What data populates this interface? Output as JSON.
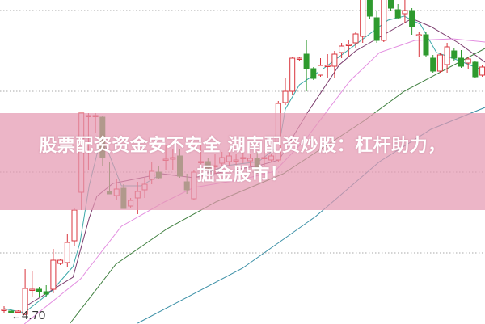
{
  "banner": {
    "line1": "股票配资资金安不安全 湖南配资炒股：杠杆助力，",
    "line2": "掘金股市！",
    "color": "#e498b2"
  },
  "chart_data": {
    "type": "candlestick",
    "title": "",
    "xlabel": "",
    "ylabel": "",
    "ylim": [
      4.61,
      8.62
    ],
    "grid": true,
    "grid_style": "dotted horizontal",
    "low_price_label": "4.70",
    "up_color": "#d9343c",
    "down_color": "#2e9a2e",
    "candles_ohlc": [
      [
        4.79,
        4.83,
        4.74,
        4.79
      ],
      [
        4.77,
        4.8,
        4.74,
        4.76
      ],
      [
        4.76,
        4.78,
        4.74,
        4.77
      ],
      [
        4.73,
        5.29,
        4.72,
        5.05
      ],
      [
        5.04,
        5.27,
        4.94,
        5.04
      ],
      [
        5.04,
        5.07,
        4.94,
        5.01
      ],
      [
        5.01,
        5.09,
        4.95,
        4.98
      ],
      [
        5.04,
        5.54,
        4.99,
        5.4
      ],
      [
        5.36,
        5.42,
        5.34,
        5.4
      ],
      [
        5.37,
        5.72,
        5.32,
        5.62
      ],
      [
        5.64,
        6.04,
        5.57,
        6.02
      ],
      [
        6.24,
        7.22,
        6.02,
        7.22
      ],
      [
        7.19,
        7.22,
        6.52,
        7.19
      ],
      [
        7.19,
        7.22,
        6.97,
        7.19
      ],
      [
        7.17,
        7.19,
        6.57,
        6.67
      ],
      [
        6.25,
        6.62,
        6.22,
        6.22
      ],
      [
        6.2,
        6.4,
        6.14,
        6.28
      ],
      [
        6.29,
        6.34,
        6.04,
        6.04
      ],
      [
        6.07,
        6.17,
        6.04,
        6.14
      ],
      [
        6.17,
        6.37,
        5.97,
        6.25
      ],
      [
        6.27,
        6.42,
        6.17,
        6.34
      ],
      [
        6.4,
        6.62,
        6.34,
        6.5
      ],
      [
        6.49,
        6.57,
        6.4,
        6.42
      ],
      [
        6.65,
        6.82,
        6.52,
        6.65
      ],
      [
        6.65,
        6.77,
        6.52,
        6.67
      ],
      [
        6.69,
        6.77,
        6.42,
        6.44
      ],
      [
        6.37,
        6.47,
        6.22,
        6.27
      ],
      [
        6.16,
        6.52,
        6.14,
        6.49
      ],
      [
        6.62,
        6.82,
        6.47,
        6.62
      ],
      [
        6.62,
        6.67,
        6.5,
        6.54
      ],
      [
        6.57,
        6.72,
        6.47,
        6.57
      ],
      [
        6.6,
        6.74,
        6.57,
        6.67
      ],
      [
        6.62,
        6.77,
        6.57,
        6.69
      ],
      [
        6.64,
        6.72,
        6.57,
        6.64
      ],
      [
        6.67,
        6.74,
        6.6,
        6.67
      ],
      [
        6.63,
        6.72,
        6.57,
        6.66
      ],
      [
        6.66,
        6.74,
        6.47,
        6.5
      ],
      [
        6.67,
        6.74,
        6.57,
        6.67
      ],
      [
        6.64,
        6.72,
        6.62,
        6.69
      ],
      [
        6.64,
        7.37,
        6.62,
        7.34
      ],
      [
        7.35,
        7.65,
        7.32,
        7.49
      ],
      [
        7.49,
        7.92,
        7.44,
        7.9
      ],
      [
        7.9,
        7.92,
        7.87,
        7.9
      ],
      [
        7.95,
        8.13,
        7.49,
        7.77
      ],
      [
        7.77,
        7.79,
        7.63,
        7.65
      ],
      [
        7.69,
        7.9,
        7.67,
        7.81
      ],
      [
        7.81,
        7.95,
        7.65,
        7.81
      ],
      [
        7.8,
        7.99,
        7.65,
        7.95
      ],
      [
        7.97,
        8.09,
        7.9,
        8.05
      ],
      [
        8.07,
        8.12,
        7.92,
        8.07
      ],
      [
        8.09,
        8.22,
        8.02,
        8.2
      ],
      [
        8.17,
        8.72,
        8.09,
        8.67
      ],
      [
        8.67,
        8.72,
        8.39,
        8.42
      ],
      [
        8.4,
        8.49,
        8.09,
        8.12
      ],
      [
        8.12,
        8.72,
        8.1,
        8.67
      ],
      [
        8.67,
        8.72,
        8.49,
        8.52
      ],
      [
        8.5,
        8.57,
        8.38,
        8.4
      ],
      [
        8.45,
        8.67,
        8.34,
        8.49
      ],
      [
        8.49,
        8.52,
        8.19,
        8.29
      ],
      [
        8.19,
        8.22,
        7.92,
        8.19
      ],
      [
        8.19,
        8.22,
        7.92,
        7.94
      ],
      [
        7.9,
        7.94,
        7.72,
        7.74
      ],
      [
        7.74,
        7.97,
        7.72,
        7.94
      ],
      [
        7.82,
        8.09,
        7.72,
        8.04
      ],
      [
        7.99,
        8.02,
        7.87,
        7.9
      ],
      [
        7.9,
        8.0,
        7.78,
        7.8
      ],
      [
        7.84,
        7.92,
        7.77,
        7.89
      ],
      [
        7.85,
        7.87,
        7.65,
        7.67
      ],
      [
        7.69,
        7.82,
        7.67,
        7.79
      ]
    ],
    "moving_averages": [
      {
        "color": "#3aa8a8",
        "points": [
          [
            0,
            4.8
          ],
          [
            2.9,
            4.75
          ],
          [
            6.8,
            5.02
          ],
          [
            9.8,
            5.32
          ],
          [
            10.8,
            5.62
          ],
          [
            12.1,
            6.32
          ],
          [
            13.8,
            6.92
          ],
          [
            14.9,
            6.72
          ],
          [
            16.7,
            6.32
          ],
          [
            19.5,
            6.32
          ],
          [
            22.4,
            6.47
          ],
          [
            27,
            6.42
          ],
          [
            31.6,
            6.57
          ],
          [
            36.2,
            6.62
          ],
          [
            39.1,
            6.82
          ],
          [
            40,
            7.27
          ],
          [
            42,
            7.57
          ],
          [
            45.4,
            7.77
          ],
          [
            50,
            8.07
          ],
          [
            52.3,
            8.22
          ],
          [
            54.6,
            8.37
          ],
          [
            56.9,
            8.42
          ],
          [
            59.2,
            8.32
          ],
          [
            61.5,
            7.97
          ],
          [
            63.8,
            7.9
          ],
          [
            66.1,
            7.82
          ],
          [
            68.4,
            7.74
          ]
        ]
      },
      {
        "color": "#7a3a6c",
        "points": [
          [
            2.9,
            4.82
          ],
          [
            9.8,
            5.19
          ],
          [
            12.1,
            5.92
          ],
          [
            13.2,
            6.19
          ],
          [
            15.5,
            6.35
          ],
          [
            22.4,
            6.47
          ],
          [
            27,
            6.42
          ],
          [
            31.6,
            6.5
          ],
          [
            36.2,
            6.57
          ],
          [
            39.1,
            6.64
          ],
          [
            43.1,
            7.22
          ],
          [
            47.7,
            7.82
          ],
          [
            50,
            7.99
          ],
          [
            54.6,
            8.22
          ],
          [
            58,
            8.39
          ],
          [
            60.7,
            8.29
          ],
          [
            64.6,
            8.09
          ],
          [
            68.4,
            7.85
          ]
        ]
      },
      {
        "color": "#e38ee0",
        "points": [
          [
            2.9,
            4.61
          ],
          [
            10.9,
            5.17
          ],
          [
            14,
            5.52
          ],
          [
            16.7,
            5.82
          ],
          [
            22.8,
            6.12
          ],
          [
            27,
            6.3
          ],
          [
            33.9,
            6.4
          ],
          [
            38.5,
            6.5
          ],
          [
            43.1,
            6.92
          ],
          [
            49.2,
            7.62
          ],
          [
            53.4,
            7.97
          ],
          [
            58.4,
            8.12
          ],
          [
            63.8,
            8.14
          ],
          [
            68.4,
            8.1
          ]
        ]
      },
      {
        "color": "#3f7f3f",
        "points": [
          [
            9.4,
            4.62
          ],
          [
            15.9,
            5.35
          ],
          [
            23.2,
            5.79
          ],
          [
            30.1,
            6.12
          ],
          [
            39.7,
            6.47
          ],
          [
            51.1,
            7.12
          ],
          [
            56.9,
            7.49
          ],
          [
            68.4,
            8.02
          ]
        ]
      },
      {
        "color": "#3a8fa6",
        "points": [
          [
            19,
            4.62
          ],
          [
            33.9,
            5.3
          ],
          [
            44.3,
            5.94
          ],
          [
            53.4,
            6.62
          ],
          [
            60.7,
            7.02
          ],
          [
            68.4,
            7.29
          ]
        ]
      }
    ],
    "gridline_prices": [
      8.49,
      7.49,
      6.49,
      5.49
    ]
  }
}
